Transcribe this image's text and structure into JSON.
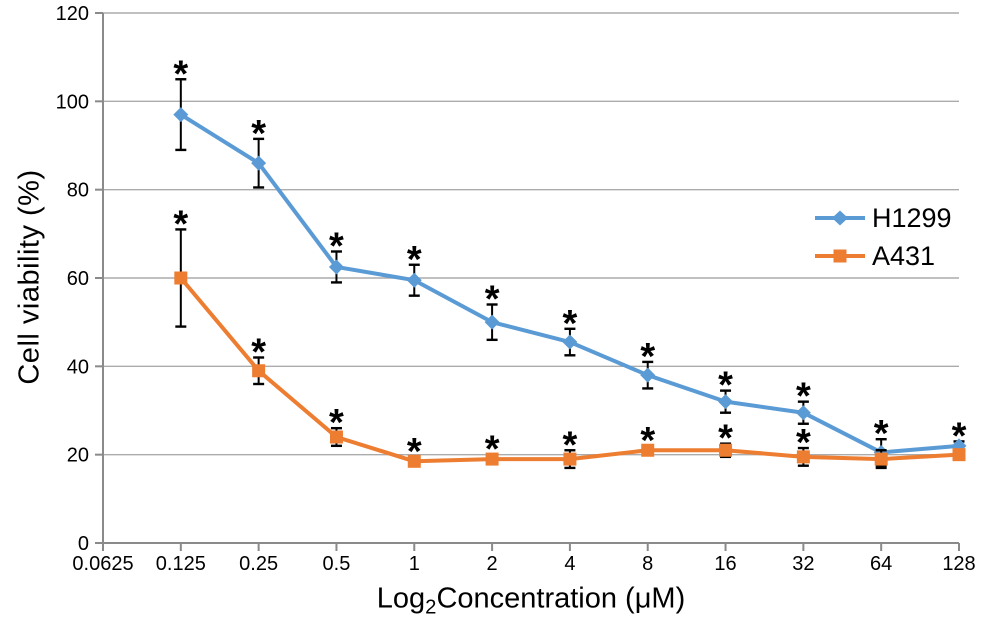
{
  "chart_data": {
    "type": "line",
    "title": "",
    "x_axis": {
      "label": "Log2Concentration (μM)",
      "label_parts": {
        "prefix": "Log",
        "sub": "2",
        "suffix": "Concentration (μM)"
      },
      "scale": "log2",
      "tick_labels": [
        "0.0625",
        "0.125",
        "0.25",
        "0.5",
        "1",
        "2",
        "4",
        "8",
        "16",
        "32",
        "64",
        "128"
      ]
    },
    "y_axis": {
      "label": "Cell viability (%)",
      "ticks": [
        0,
        20,
        40,
        60,
        80,
        100,
        120
      ],
      "min": 0,
      "max": 120,
      "gridlines": "horizontal"
    },
    "legend": {
      "position": "middle-right",
      "entries": [
        "H1299",
        "A431"
      ]
    },
    "series": [
      {
        "name": "H1299",
        "color": "#5B9BD5",
        "marker": "diamond",
        "x": [
          0.125,
          0.25,
          0.5,
          1,
          2,
          4,
          8,
          16,
          32,
          64,
          128
        ],
        "values": [
          97,
          86,
          62.5,
          59.5,
          50,
          45.5,
          38,
          32,
          29.5,
          20.5,
          22
        ],
        "error": [
          8,
          5.5,
          3.5,
          3.5,
          4,
          3,
          3,
          2.5,
          2.5,
          3,
          1
        ],
        "significance": [
          "*",
          "*",
          "*",
          "*",
          "*",
          "*",
          "*",
          "*",
          "*",
          "*",
          "*"
        ]
      },
      {
        "name": "A431",
        "color": "#ED7D31",
        "marker": "square",
        "x": [
          0.125,
          0.25,
          0.5,
          1,
          2,
          4,
          8,
          16,
          32,
          64,
          128
        ],
        "values": [
          60,
          39,
          24,
          18.5,
          19,
          19,
          21,
          21,
          19.5,
          19,
          20
        ],
        "error": [
          11,
          3,
          2,
          1,
          1,
          2,
          1,
          1.5,
          2,
          2,
          1
        ],
        "significance": [
          "*",
          "*",
          "*",
          "*",
          "*",
          "*",
          "*",
          "*",
          "*",
          "",
          ""
        ]
      }
    ],
    "colors": {
      "gridline": "#ababab",
      "axis": "#8a8a8a",
      "error_bar": "#000000",
      "text": "#000000"
    }
  }
}
